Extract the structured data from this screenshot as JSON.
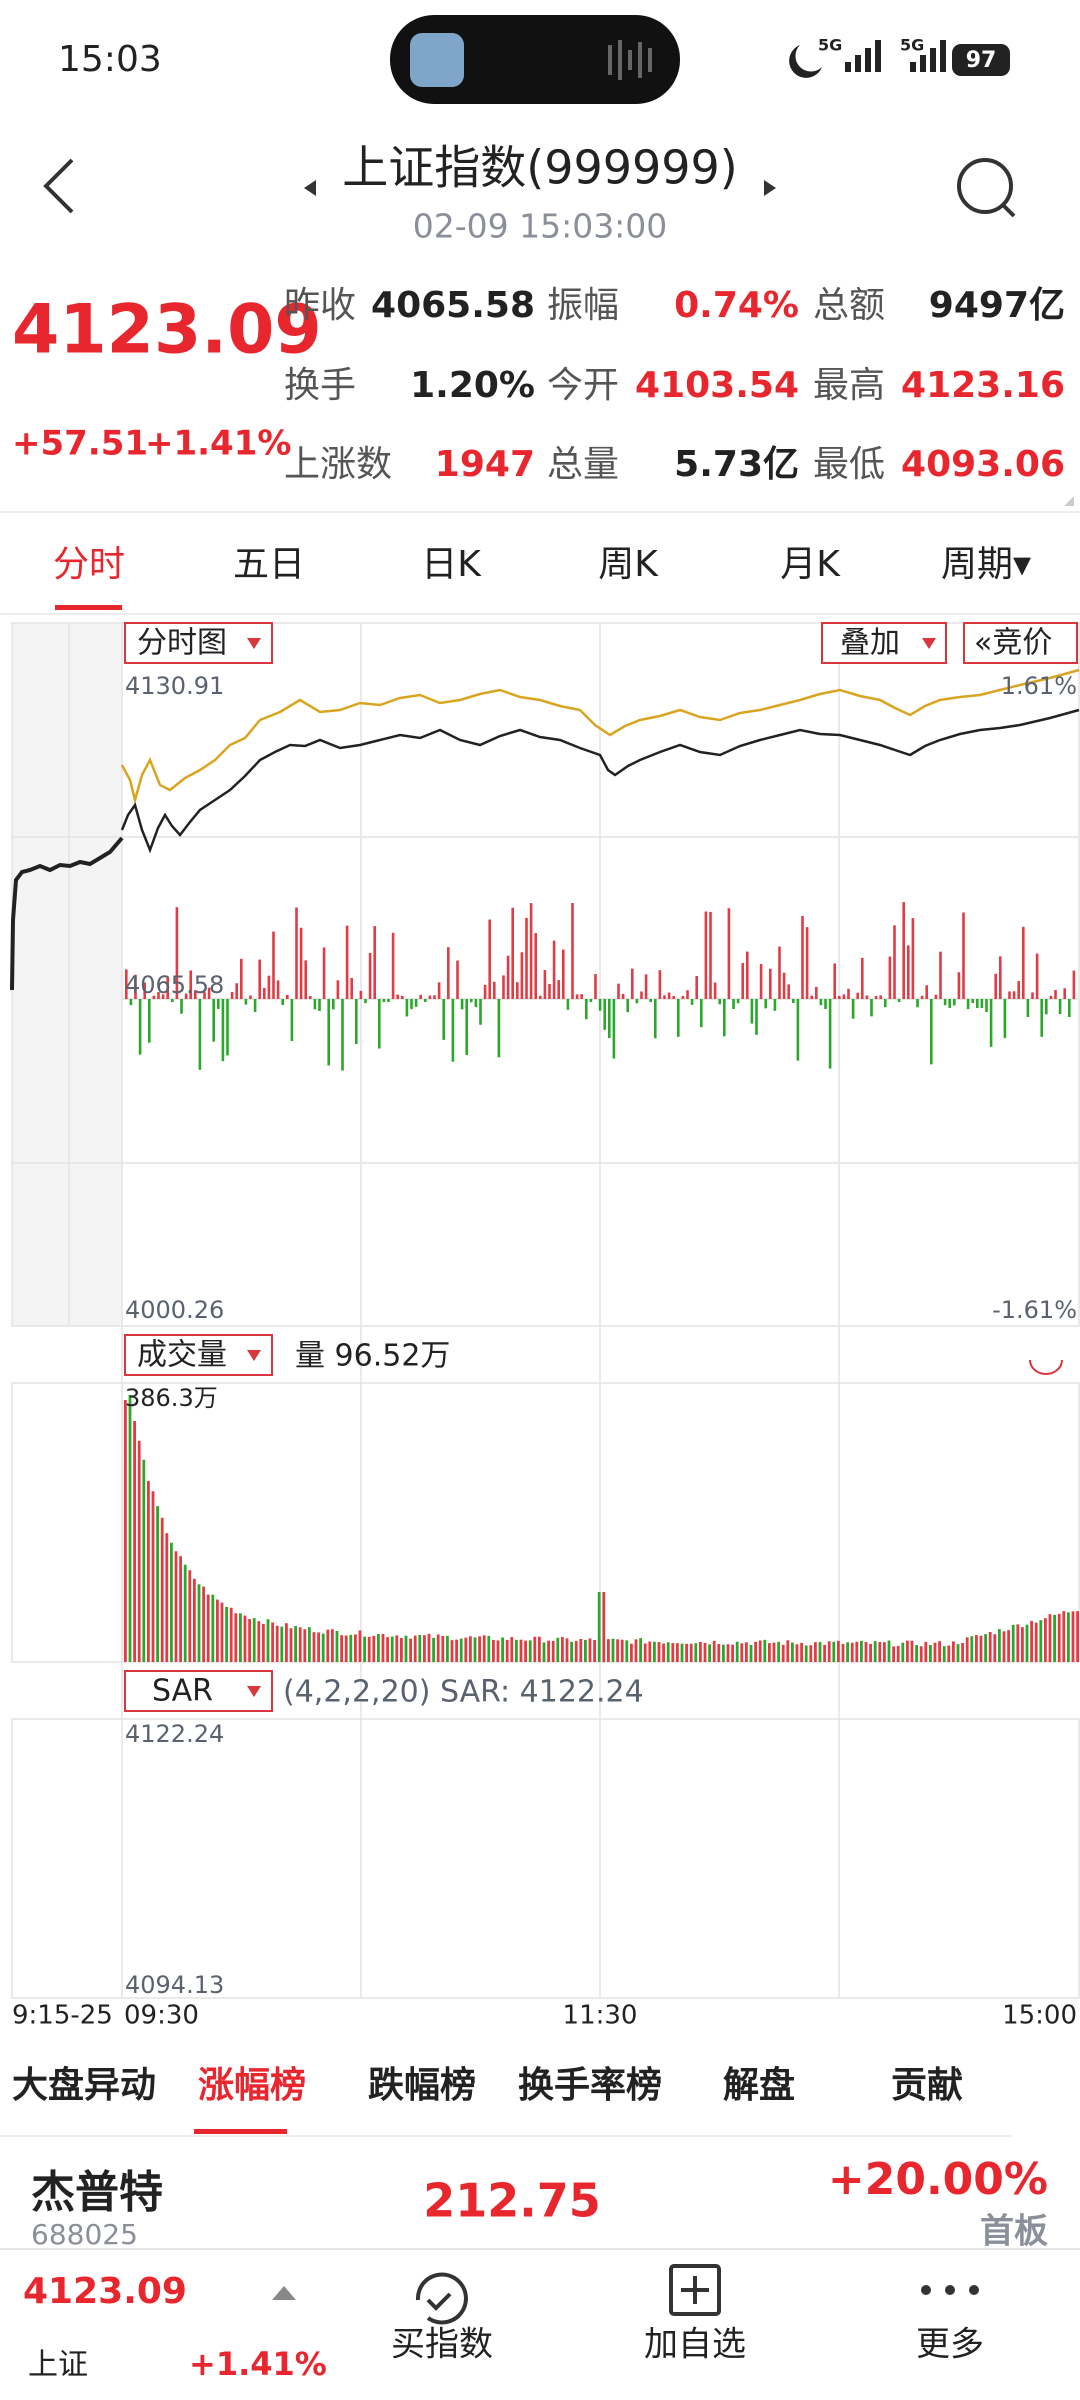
{
  "status_bar": {
    "time": "15:03",
    "network": [
      "5G",
      "5G"
    ],
    "battery": "97"
  },
  "header": {
    "title": "上证指数(999999)",
    "datetime": "02-09 15:03:00"
  },
  "quote": {
    "price": "4123.09",
    "change": "+57.51",
    "change_pct": "+1.41%",
    "stats": [
      [
        {
          "label": "昨收",
          "value": "4065.58"
        },
        {
          "label": "振幅",
          "value": "0.74%"
        },
        {
          "label": "总额",
          "value": "9497亿"
        }
      ],
      [
        {
          "label": "换手",
          "value": "1.20%"
        },
        {
          "label": "今开",
          "value": "4103.54"
        },
        {
          "label": "最高",
          "value": "4123.16"
        }
      ],
      [
        {
          "label": "上涨数",
          "value": "1947"
        },
        {
          "label": "总量",
          "value": "5.73亿"
        },
        {
          "label": "最低",
          "value": "4093.06"
        }
      ]
    ]
  },
  "period_tabs": [
    "分时",
    "五日",
    "日K",
    "周K",
    "月K",
    "周期▾"
  ],
  "price_chart": {
    "mode": "分时图",
    "overlay": "叠加",
    "auction": "«竞价",
    "high": "4130.91",
    "high_pct": "1.61%",
    "base": "4065.58",
    "low": "4000.26",
    "low_pct": "-1.61%"
  },
  "volume_chart": {
    "indicator": "成交量",
    "current": "量 96.52万",
    "max": "386.3万"
  },
  "sar_chart": {
    "indicator": "SAR",
    "params": "(4,2,2,20) SAR: 4122.24",
    "high": "4122.24",
    "low": "4094.13"
  },
  "time_axis": [
    "9:15-25",
    "09:30",
    "11:30",
    "15:00"
  ],
  "ranking_tabs": [
    "大盘异动",
    "涨幅榜",
    "跌幅榜",
    "换手率榜",
    "解盘",
    "贡献"
  ],
  "stock_list": [
    {
      "name": "杰普特",
      "code": "688025",
      "price": "212.75",
      "change_pct": "+20.00%",
      "tag": "首板"
    }
  ],
  "bottom_bar": {
    "price": "4123.09",
    "name": "上证",
    "change_pct": "+1.41%",
    "actions": [
      "买指数",
      "加自选",
      "更多"
    ]
  }
}
